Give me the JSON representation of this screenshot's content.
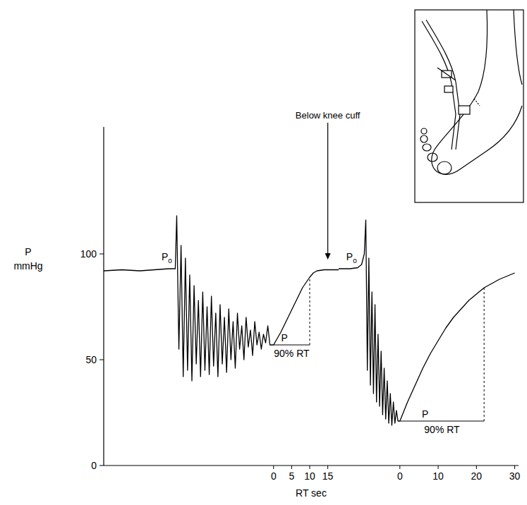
{
  "chart_data": [
    {
      "type": "line",
      "color": "#000000",
      "x_label": "RT sec",
      "y_label": "P",
      "y_unit": "mmHg",
      "xlim": [
        -47,
        18
      ],
      "xticks": [
        0,
        5,
        10,
        15
      ],
      "ylim": [
        0,
        160
      ],
      "yticks": [
        0,
        50,
        100
      ],
      "x": [
        -47,
        -42,
        -37,
        -33,
        -29,
        -27.2,
        -26.8,
        -26.2,
        -25.6,
        -25.0,
        -24.4,
        -23.8,
        -23.2,
        -22.6,
        -22.0,
        -21.4,
        -20.8,
        -20.2,
        -19.6,
        -19.0,
        -18.4,
        -17.8,
        -17.2,
        -16.6,
        -16.0,
        -15.4,
        -14.8,
        -14.2,
        -13.6,
        -13.0,
        -12.4,
        -11.8,
        -11.2,
        -10.6,
        -10.0,
        -9.4,
        -8.8,
        -8.2,
        -7.6,
        -7.0,
        -6.4,
        -5.8,
        -5.2,
        -4.6,
        -4.0,
        -3.4,
        -2.8,
        -2.2,
        -1.6,
        -1.0,
        0,
        2,
        4,
        6,
        8,
        10,
        11,
        12,
        14,
        16,
        18
      ],
      "values": [
        92,
        92.5,
        92,
        92.5,
        93,
        93,
        118,
        55,
        104,
        42,
        98,
        45,
        90,
        40,
        85,
        48,
        78,
        42,
        82,
        45,
        75,
        43,
        80,
        47,
        72,
        42,
        76,
        48,
        70,
        44,
        74,
        50,
        68,
        46,
        72,
        55,
        66,
        50,
        70,
        56,
        64,
        52,
        68,
        57,
        63,
        55,
        62,
        58,
        66,
        57,
        57,
        63,
        70,
        77,
        84,
        89,
        91,
        92,
        92.5,
        92.5,
        92.5
      ],
      "annotations": [
        {
          "text": "Po",
          "x": -31,
          "y": 97
        }
      ],
      "recovery": {
        "x0": 0,
        "x1": 10,
        "p": 57,
        "text": "90% RT",
        "p_text": "P"
      },
      "arrow": {
        "text": "Below knee cuff",
        "x": 15,
        "y": 97
      }
    },
    {
      "type": "line",
      "color": "#000000",
      "tick_labels": "x",
      "xlim": [
        -16,
        31
      ],
      "xticks": [
        0,
        10,
        20,
        30
      ],
      "ylim": [
        0,
        160
      ],
      "x": [
        -16,
        -13,
        -11,
        -10,
        -9.3,
        -8.9,
        -8.5,
        -8.1,
        -7.7,
        -7.3,
        -6.9,
        -6.5,
        -6.1,
        -5.7,
        -5.3,
        -4.9,
        -4.5,
        -4.1,
        -3.7,
        -3.3,
        -2.9,
        -2.5,
        -2.1,
        -1.7,
        -1.3,
        -0.9,
        -0.5,
        0,
        2,
        4,
        6,
        8,
        10,
        12,
        14,
        16,
        18,
        20,
        22,
        24,
        26,
        28,
        30
      ],
      "values": [
        93,
        93,
        93.5,
        95,
        100,
        116,
        45,
        98,
        38,
        82,
        34,
        76,
        30,
        62,
        28,
        54,
        24,
        46,
        22,
        40,
        20,
        34,
        19,
        30,
        20,
        26,
        21,
        21,
        30,
        38,
        46,
        53,
        59,
        65,
        70,
        74,
        78,
        81,
        84,
        86,
        88,
        89.5,
        91
      ],
      "annotations": [
        {
          "text": "Po",
          "x": -14,
          "y": 97
        }
      ],
      "recovery": {
        "x0": 0,
        "x1": 22,
        "p": 21,
        "text": "90% RT",
        "p_text": "P"
      }
    }
  ]
}
